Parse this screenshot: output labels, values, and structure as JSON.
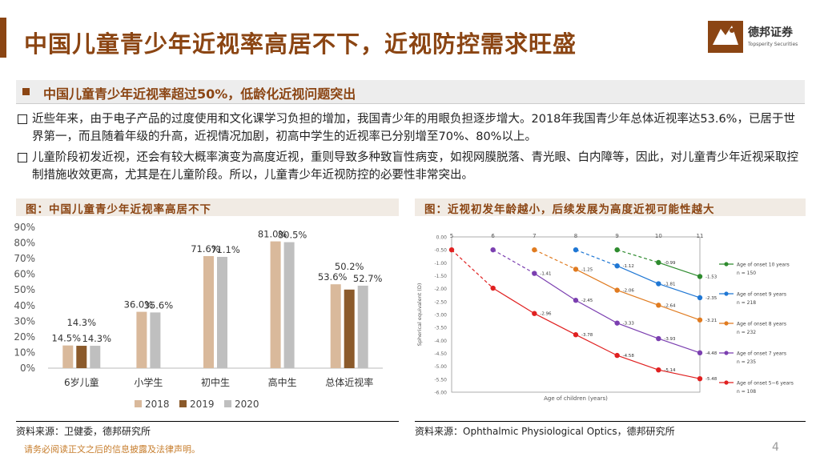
{
  "title": "中国儿童青少年近视率高居不下，近视防控需求旺盛",
  "logo": {
    "cn": "德邦证券",
    "en": "Topsperity Securities"
  },
  "subtitle": "中国儿童青少年近视率超过50%，低龄化近视问题突出",
  "bullets": [
    "近些年来，由于电子产品的过度使用和文化课学习负担的增加，我国青少年的用眼负担逐步增大。2018年我国青少年总体近视率达53.6%，已居于世界第一，而且随着年级的升高，近视情况加剧，初高中学生的近视率已分别增至70%、80%以上。",
    "儿童阶段初发近视，还会有较大概率演变为高度近视，重则导致多种致盲性病变，如视网膜脱落、青光眼、白内障等，因此，对儿童青少年近视采取控制措施收效更高，尤其是在儿童阶段。所以，儿童青少年近视防控的必要性非常突出。"
  ],
  "left_chart_title": "图：中国儿童青少年近视率高居不下",
  "right_chart_title": "图：近视初发年龄越小，后续发展为高度近视可能性越大",
  "left_source": "资料来源：卫健委，德邦研究所",
  "right_source": "资料来源：Ophthalmic Physiological Optics，德邦研究所",
  "footer": "请务必阅读正文之后的信息披露及法律声明。",
  "page_number": "4",
  "chart_data": [
    {
      "type": "bar",
      "categories": [
        "6岁儿童",
        "小学生",
        "初中生",
        "高中生",
        "总体近视率"
      ],
      "series": [
        {
          "name": "2018",
          "values": [
            14.5,
            36.0,
            71.6,
            81.0,
            53.6
          ],
          "color": "#d9b99b"
        },
        {
          "name": "2019",
          "values": [
            14.3,
            null,
            null,
            null,
            50.2
          ],
          "color": "#8b5a2b"
        },
        {
          "name": "2020",
          "values": [
            14.3,
            35.6,
            71.1,
            80.5,
            52.7
          ],
          "color": "#bfbfbf"
        }
      ],
      "data_labels": [
        "14.5%",
        "14.3%",
        "14.3%",
        "36.0%",
        "35.6%",
        "71.6%",
        "71.1%",
        "81.0%",
        "80.5%",
        "53.6%",
        "50.2%",
        "52.7%"
      ],
      "yticks": [
        "0%",
        "10%",
        "20%",
        "30%",
        "40%",
        "50%",
        "60%",
        "70%",
        "80%",
        "90%"
      ],
      "ylim": [
        0,
        90
      ],
      "legend_position": "bottom"
    },
    {
      "type": "line",
      "xlabel": "Age of children (years)",
      "ylabel": "Spherical equivalent (D)",
      "xticks": [
        "5",
        "6",
        "7",
        "8",
        "9",
        "10",
        "11"
      ],
      "yticks": [
        "0.00",
        "-0.50",
        "-1.00",
        "-1.50",
        "-2.00",
        "-2.50",
        "-3.00",
        "-3.50",
        "-4.00",
        "-4.50",
        "-5.00",
        "-5.50",
        "-6.00"
      ],
      "xlim": [
        5,
        11
      ],
      "ylim": [
        -6.0,
        0.0
      ],
      "legend_position": "right",
      "series": [
        {
          "name": "Age of onset 10 years",
          "n": "n = 150",
          "color": "#2e8b2e",
          "dashed_x": [
            9,
            10
          ],
          "dashed_y": [
            -0.5,
            -0.99
          ],
          "x": [
            10,
            11
          ],
          "y": [
            -0.99,
            -1.53
          ],
          "labels": [
            "-0.99",
            "-1.53"
          ]
        },
        {
          "name": "Age of onset 9 years",
          "n": "n = 218",
          "color": "#1f77d4",
          "dashed_x": [
            8,
            9
          ],
          "dashed_y": [
            -0.5,
            -1.12
          ],
          "x": [
            9,
            10,
            11
          ],
          "y": [
            -1.12,
            -1.81,
            -2.35
          ],
          "labels": [
            "-1.12",
            "-1.81",
            "-2.35"
          ]
        },
        {
          "name": "Age of onset 8 years",
          "n": "n = 232",
          "color": "#e07b20",
          "dashed_x": [
            7,
            8
          ],
          "dashed_y": [
            -0.5,
            -1.25
          ],
          "x": [
            8,
            9,
            10,
            11
          ],
          "y": [
            -1.25,
            -2.06,
            -2.64,
            -3.21
          ],
          "labels": [
            "-1.25",
            "-2.06",
            "-2.64",
            "-3.21"
          ]
        },
        {
          "name": "Age of onset 7 years",
          "n": "n = 235",
          "color": "#7b3fb0",
          "dashed_x": [
            6,
            7
          ],
          "dashed_y": [
            -0.5,
            -1.41
          ],
          "x": [
            7,
            8,
            9,
            10,
            11
          ],
          "y": [
            -1.41,
            -2.45,
            -3.33,
            -3.93,
            -4.48
          ],
          "labels": [
            "-1.41",
            "-2.45",
            "-3.33",
            "-3.93",
            "-4.48"
          ]
        },
        {
          "name": "Age of onset 5~6 years",
          "n": "n = 108",
          "color": "#e02020",
          "dashed_x": [
            5,
            6
          ],
          "dashed_y": [
            -0.5,
            -1.98
          ],
          "x": [
            6,
            7,
            8,
            9,
            10,
            11
          ],
          "y": [
            -1.98,
            -2.96,
            -3.78,
            -4.58,
            -5.14,
            -5.48
          ],
          "labels": [
            "",
            "-2.96",
            "-3.78",
            "-4.58",
            "-5.14",
            "-5.48"
          ]
        }
      ]
    }
  ]
}
